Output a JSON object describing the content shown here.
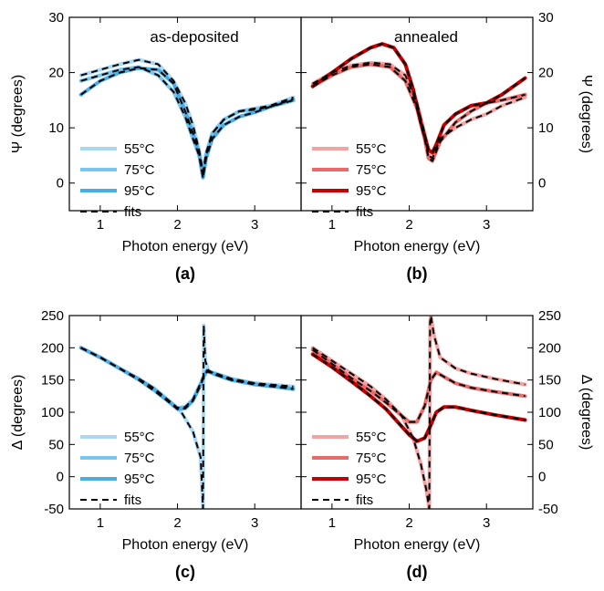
{
  "chart_data": [
    {
      "id": "a",
      "type": "line",
      "panel_label": "(a)",
      "title": "as-deposited",
      "xlabel": "Photon energy (eV)",
      "ylabel": "Ψ (degrees)",
      "ylabel_side": "left",
      "xlim": [
        0.6,
        3.6
      ],
      "ylim": [
        -5,
        30
      ],
      "xticks": [
        1,
        2,
        3
      ],
      "yticks": [
        0,
        10,
        20,
        30
      ],
      "legend": [
        "55°C",
        "75°C",
        "95°C",
        "fits"
      ],
      "colors": [
        "#a9d8f3",
        "#79c6ee",
        "#4aaee6"
      ],
      "series": [
        {
          "name": "55°C",
          "color": "#a9d8f3",
          "x": [
            0.75,
            1.0,
            1.25,
            1.5,
            1.75,
            1.95,
            2.1,
            2.2,
            2.28,
            2.33,
            2.37,
            2.45,
            2.6,
            2.8,
            3.0,
            3.2,
            3.5
          ],
          "y": [
            19.5,
            20.5,
            21.5,
            22.3,
            21.5,
            18.5,
            14.5,
            10.5,
            6.0,
            2.0,
            5.5,
            9.0,
            11.5,
            13.0,
            13.5,
            14.0,
            15.5
          ]
        },
        {
          "name": "75°C",
          "color": "#79c6ee",
          "x": [
            0.75,
            1.0,
            1.25,
            1.5,
            1.75,
            1.95,
            2.1,
            2.2,
            2.28,
            2.33,
            2.37,
            2.45,
            2.6,
            2.8,
            3.0,
            3.2,
            3.5
          ],
          "y": [
            18.5,
            19.5,
            20.5,
            21.0,
            19.5,
            16.5,
            12.0,
            8.0,
            5.0,
            1.0,
            5.0,
            9.0,
            11.5,
            13.0,
            13.3,
            13.8,
            15.2
          ]
        },
        {
          "name": "95°C",
          "color": "#4aaee6",
          "x": [
            0.75,
            1.0,
            1.25,
            1.5,
            1.75,
            1.95,
            2.1,
            2.2,
            2.28,
            2.33,
            2.37,
            2.45,
            2.6,
            2.8,
            3.0,
            3.2,
            3.5
          ],
          "y": [
            16.0,
            18.5,
            20.0,
            20.8,
            20.5,
            18.0,
            13.0,
            9.0,
            5.5,
            1.0,
            4.5,
            8.0,
            10.5,
            12.0,
            12.8,
            13.8,
            15.0
          ]
        }
      ]
    },
    {
      "id": "b",
      "type": "line",
      "panel_label": "(b)",
      "title": "annealed",
      "xlabel": "Photon energy (eV)",
      "ylabel": "Ψ (degrees)",
      "ylabel_side": "right",
      "xlim": [
        0.6,
        3.6
      ],
      "ylim": [
        -5,
        30
      ],
      "xticks": [
        1,
        2,
        3
      ],
      "yticks": [
        0,
        10,
        20,
        30
      ],
      "legend": [
        "55°C",
        "75°C",
        "95°C",
        "fits"
      ],
      "colors": [
        "#f4a3a3",
        "#ea6a6a",
        "#c40000"
      ],
      "series": [
        {
          "name": "55°C",
          "color": "#f4a3a3",
          "x": [
            0.75,
            1.0,
            1.25,
            1.5,
            1.75,
            1.95,
            2.1,
            2.2,
            2.25,
            2.3,
            2.4,
            2.6,
            2.8,
            3.0,
            3.2,
            3.5
          ],
          "y": [
            18.0,
            20.0,
            21.3,
            21.8,
            21.5,
            19.5,
            14.5,
            9.0,
            5.0,
            4.5,
            8.0,
            10.0,
            11.5,
            12.5,
            14.0,
            15.5
          ]
        },
        {
          "name": "75°C",
          "color": "#ea6a6a",
          "x": [
            0.75,
            1.0,
            1.25,
            1.5,
            1.75,
            1.95,
            2.1,
            2.2,
            2.25,
            2.3,
            2.4,
            2.6,
            2.8,
            3.0,
            3.2,
            3.5
          ],
          "y": [
            17.5,
            19.5,
            21.0,
            21.5,
            21.0,
            18.5,
            13.5,
            8.0,
            4.5,
            4.0,
            7.5,
            11.0,
            13.0,
            14.5,
            15.0,
            16.0
          ]
        },
        {
          "name": "95°C",
          "color": "#c40000",
          "x": [
            0.75,
            1.0,
            1.25,
            1.5,
            1.65,
            1.8,
            1.95,
            2.05,
            2.15,
            2.25,
            2.3,
            2.35,
            2.45,
            2.6,
            2.8,
            3.0,
            3.2,
            3.5
          ],
          "y": [
            17.5,
            20.0,
            22.5,
            24.5,
            25.2,
            24.5,
            21.5,
            17.0,
            11.0,
            6.0,
            5.5,
            7.0,
            10.5,
            12.5,
            14.0,
            14.5,
            16.0,
            19.0
          ]
        }
      ]
    },
    {
      "id": "c",
      "type": "line",
      "panel_label": "(c)",
      "title": "",
      "xlabel": "Photon energy (eV)",
      "ylabel": "Δ (degrees)",
      "ylabel_side": "left",
      "xlim": [
        0.6,
        3.6
      ],
      "ylim": [
        -50,
        250
      ],
      "xticks": [
        1,
        2,
        3
      ],
      "yticks": [
        -50,
        0,
        50,
        100,
        150,
        200,
        250
      ],
      "legend": [
        "55°C",
        "75°C",
        "95°C",
        "fits"
      ],
      "colors": [
        "#a9d8f3",
        "#79c6ee",
        "#4aaee6"
      ],
      "series": [
        {
          "name": "55°C",
          "color": "#a9d8f3",
          "x": [
            0.75,
            1.0,
            1.25,
            1.5,
            1.7,
            1.9,
            2.05,
            2.2,
            2.3,
            2.33,
            2.34,
            2.36,
            2.4,
            2.5,
            2.7,
            3.0,
            3.3,
            3.5
          ],
          "y": [
            200,
            185,
            168,
            150,
            133,
            115,
            100,
            70,
            30,
            -50,
            235,
            180,
            165,
            158,
            150,
            145,
            142,
            140
          ]
        },
        {
          "name": "75°C",
          "color": "#79c6ee",
          "x": [
            0.75,
            1.0,
            1.25,
            1.5,
            1.7,
            1.85,
            2.0,
            2.1,
            2.2,
            2.3,
            2.35,
            2.38,
            2.42,
            2.5,
            2.7,
            3.0,
            3.3,
            3.5
          ],
          "y": [
            200,
            185,
            168,
            152,
            137,
            122,
            107,
            108,
            120,
            145,
            160,
            165,
            163,
            160,
            152,
            145,
            140,
            137
          ]
        },
        {
          "name": "95°C",
          "color": "#4aaee6",
          "x": [
            0.75,
            1.0,
            1.25,
            1.5,
            1.7,
            1.85,
            2.0,
            2.1,
            2.2,
            2.3,
            2.35,
            2.38,
            2.42,
            2.5,
            2.7,
            3.0,
            3.3,
            3.5
          ],
          "y": [
            200,
            185,
            168,
            151,
            135,
            120,
            105,
            106,
            118,
            142,
            158,
            163,
            162,
            158,
            150,
            143,
            139,
            136
          ]
        }
      ]
    },
    {
      "id": "d",
      "type": "line",
      "panel_label": "(d)",
      "title": "",
      "xlabel": "Photon energy (eV)",
      "ylabel": "Δ (degrees)",
      "ylabel_side": "right",
      "xlim": [
        0.6,
        3.6
      ],
      "ylim": [
        -50,
        250
      ],
      "xticks": [
        1,
        2,
        3
      ],
      "yticks": [
        -50,
        0,
        50,
        100,
        150,
        200,
        250
      ],
      "legend": [
        "55°C",
        "75°C",
        "95°C",
        "fits"
      ],
      "colors": [
        "#f4a3a3",
        "#ea6a6a",
        "#c40000"
      ],
      "series": [
        {
          "name": "55°C",
          "color": "#f4a3a3",
          "x": [
            0.75,
            1.0,
            1.25,
            1.5,
            1.7,
            1.9,
            2.05,
            2.15,
            2.22,
            2.26,
            2.27,
            2.28,
            2.32,
            2.4,
            2.6,
            2.8,
            3.1,
            3.5
          ],
          "y": [
            200,
            180,
            160,
            140,
            120,
            95,
            60,
            20,
            -20,
            -50,
            240,
            250,
            220,
            185,
            168,
            160,
            152,
            143
          ]
        },
        {
          "name": "75°C",
          "color": "#ea6a6a",
          "x": [
            0.75,
            1.0,
            1.25,
            1.5,
            1.7,
            1.85,
            2.0,
            2.1,
            2.2,
            2.28,
            2.35,
            2.45,
            2.6,
            2.8,
            3.1,
            3.5
          ],
          "y": [
            197,
            175,
            153,
            133,
            115,
            100,
            85,
            85,
            110,
            150,
            162,
            155,
            145,
            138,
            132,
            125
          ]
        },
        {
          "name": "95°C",
          "color": "#c40000",
          "x": [
            0.75,
            1.0,
            1.25,
            1.5,
            1.7,
            1.85,
            2.0,
            2.1,
            2.2,
            2.28,
            2.35,
            2.45,
            2.6,
            2.8,
            3.1,
            3.5
          ],
          "y": [
            190,
            170,
            148,
            125,
            105,
            85,
            65,
            55,
            60,
            80,
            100,
            108,
            108,
            103,
            96,
            88
          ]
        }
      ]
    }
  ]
}
